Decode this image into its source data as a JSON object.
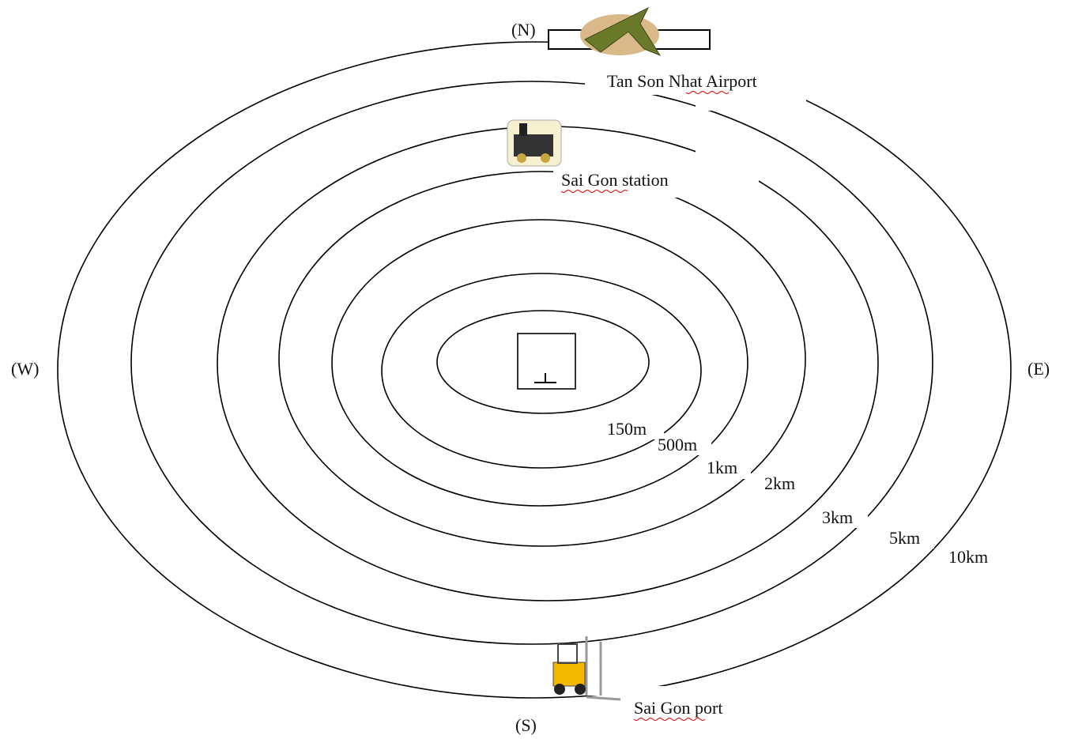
{
  "directions": {
    "north": "(N)",
    "south": "(S)",
    "west": "(W)",
    "east": "(E)"
  },
  "rings": [
    "150m",
    "500m",
    "1km",
    "2km",
    "3km",
    "5km",
    "10km"
  ],
  "places": {
    "airport": "Tan Son Nhat Airport",
    "station": "Sai Gon station",
    "port": "Sai Gon port"
  }
}
